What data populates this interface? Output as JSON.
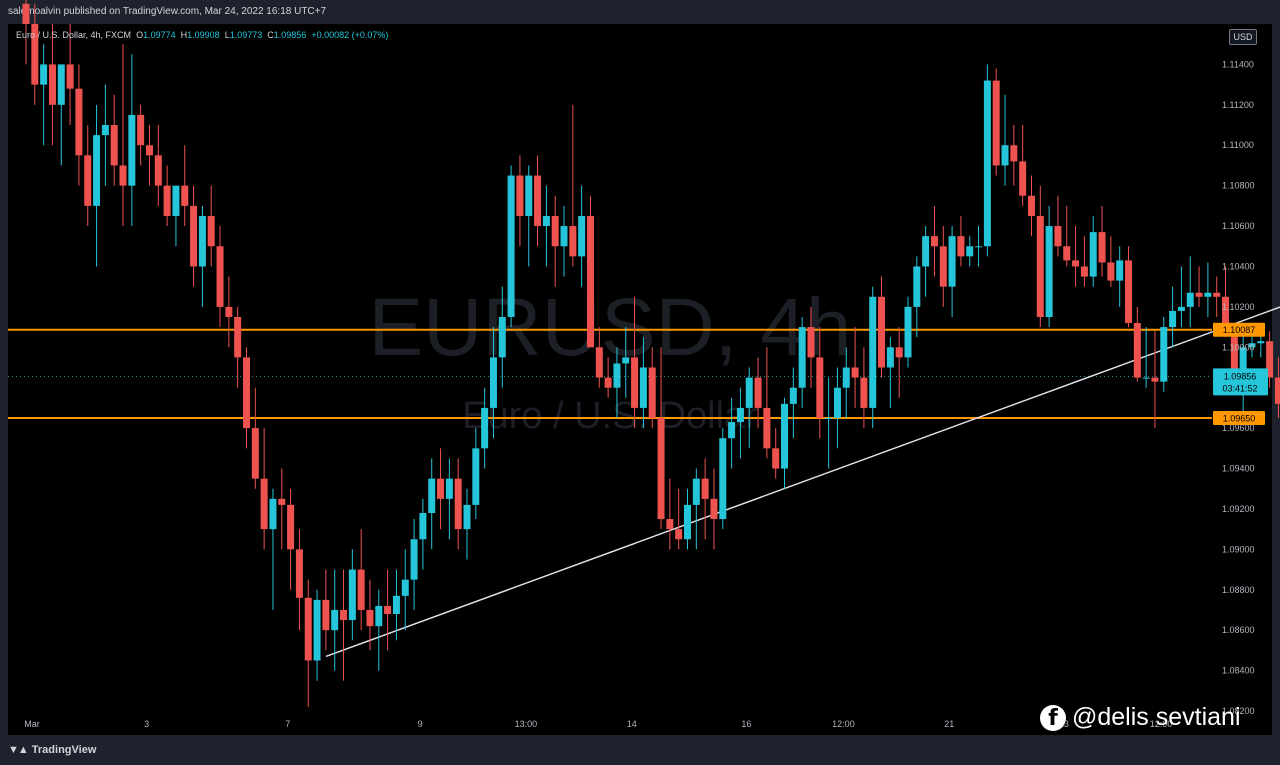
{
  "header": {
    "publish_line": "salomoalvin published on TradingView.com, Mar 24, 2022 16:18 UTC+7"
  },
  "legend": {
    "symbol_line": "Euro / U.S. Dollar, 4h, FXCM",
    "open_label": "O",
    "open": "1.09774",
    "high_label": "H",
    "high": "1.09908",
    "low_label": "L",
    "low": "1.09773",
    "close_label": "C",
    "close": "1.09856",
    "change": "+0.00082 (+0.07%)"
  },
  "watermark": {
    "symbol": "EURUSD, 4h",
    "name": "Euro / U.S. Dollar"
  },
  "currency_badge": "USD",
  "footer": {
    "brand": "TradingView",
    "brand_icon": "tradingview-logo-icon"
  },
  "credit": {
    "icon": "facebook-icon",
    "text": "@delis sevtiani"
  },
  "colors": {
    "bull": "#26c6da",
    "bear": "#ef5350",
    "level_line": "#ff9800",
    "trendline": "#e0e3eb",
    "price_line": "#26a69a",
    "background": "#000000"
  },
  "chart_data": {
    "type": "candlestick",
    "symbol": "EURUSD",
    "timeframe": "4h",
    "y_range": [
      1.082,
      1.116
    ],
    "y_ticks": [
      "1.11400",
      "1.11200",
      "1.11000",
      "1.10800",
      "1.10600",
      "1.10400",
      "1.10200",
      "1.10000",
      "1.09800",
      "1.09600",
      "1.09400",
      "1.09200",
      "1.09000",
      "1.08800",
      "1.08600",
      "1.08400",
      "1.08200"
    ],
    "x_ticks": [
      {
        "label": "Mar",
        "index": 0
      },
      {
        "label": "3",
        "index": 13
      },
      {
        "label": "7",
        "index": 29
      },
      {
        "label": "9",
        "index": 44
      },
      {
        "label": "13:00",
        "index": 56
      },
      {
        "label": "14",
        "index": 68
      },
      {
        "label": "16",
        "index": 81
      },
      {
        "label": "12:00",
        "index": 92
      },
      {
        "label": "21",
        "index": 104
      },
      {
        "label": "23",
        "index": 117
      },
      {
        "label": "12:00",
        "index": 128
      }
    ],
    "horizontal_levels": [
      {
        "price": 1.10087,
        "label": "1.10087"
      },
      {
        "price": 1.0965,
        "label": "1.09650"
      }
    ],
    "trendline": {
      "from": [
        34,
        1.0847
      ],
      "to": [
        151,
        1.1034
      ]
    },
    "last_price": {
      "price": 1.09856,
      "label": "1.09856",
      "countdown": "03:41:52"
    },
    "candles": [
      [
        1.117,
        1.118,
        1.114,
        1.116
      ],
      [
        1.116,
        1.117,
        1.112,
        1.113
      ],
      [
        1.113,
        1.115,
        1.11,
        1.114
      ],
      [
        1.114,
        1.116,
        1.11,
        1.112
      ],
      [
        1.112,
        1.114,
        1.109,
        1.114
      ],
      [
        1.114,
        1.116,
        1.111,
        1.1128
      ],
      [
        1.1128,
        1.114,
        1.108,
        1.1095
      ],
      [
        1.1095,
        1.111,
        1.106,
        1.107
      ],
      [
        1.107,
        1.112,
        1.104,
        1.1105
      ],
      [
        1.1105,
        1.113,
        1.108,
        1.111
      ],
      [
        1.111,
        1.1125,
        1.108,
        1.109
      ],
      [
        1.109,
        1.115,
        1.106,
        1.108
      ],
      [
        1.108,
        1.1145,
        1.106,
        1.1115
      ],
      [
        1.1115,
        1.112,
        1.109,
        1.11
      ],
      [
        1.11,
        1.111,
        1.108,
        1.1095
      ],
      [
        1.1095,
        1.111,
        1.107,
        1.108
      ],
      [
        1.108,
        1.109,
        1.106,
        1.1065
      ],
      [
        1.1065,
        1.108,
        1.105,
        1.108
      ],
      [
        1.108,
        1.11,
        1.106,
        1.107
      ],
      [
        1.107,
        1.108,
        1.103,
        1.104
      ],
      [
        1.104,
        1.107,
        1.102,
        1.1065
      ],
      [
        1.1065,
        1.108,
        1.104,
        1.105
      ],
      [
        1.105,
        1.106,
        1.101,
        1.102
      ],
      [
        1.102,
        1.1035,
        1.1,
        1.1015
      ],
      [
        1.1015,
        1.102,
        1.098,
        1.0995
      ],
      [
        1.0995,
        1.1,
        1.095,
        1.096
      ],
      [
        1.096,
        1.098,
        1.093,
        1.0935
      ],
      [
        1.0935,
        1.096,
        1.09,
        1.091
      ],
      [
        1.091,
        1.093,
        1.087,
        1.0925
      ],
      [
        1.0925,
        1.094,
        1.09,
        1.0922
      ],
      [
        1.0922,
        1.093,
        1.088,
        1.09
      ],
      [
        1.09,
        1.091,
        1.086,
        1.0876
      ],
      [
        1.0876,
        1.0885,
        1.0822,
        1.0845
      ],
      [
        1.0845,
        1.088,
        1.0835,
        1.0875
      ],
      [
        1.0875,
        1.089,
        1.085,
        1.086
      ],
      [
        1.086,
        1.089,
        1.084,
        1.087
      ],
      [
        1.087,
        1.089,
        1.0835,
        1.0865
      ],
      [
        1.0865,
        1.09,
        1.0855,
        1.089
      ],
      [
        1.089,
        1.091,
        1.086,
        1.087
      ],
      [
        1.087,
        1.0885,
        1.085,
        1.0862
      ],
      [
        1.0862,
        1.088,
        1.084,
        1.0872
      ],
      [
        1.0872,
        1.089,
        1.085,
        1.0868
      ],
      [
        1.0868,
        1.089,
        1.0855,
        1.0877
      ],
      [
        1.0877,
        1.09,
        1.086,
        1.0885
      ],
      [
        1.0885,
        1.0915,
        1.087,
        1.0905
      ],
      [
        1.0905,
        1.0925,
        1.089,
        1.0918
      ],
      [
        1.0918,
        1.0945,
        1.09,
        1.0935
      ],
      [
        1.0935,
        1.095,
        1.091,
        1.0925
      ],
      [
        1.0925,
        1.0945,
        1.0905,
        1.0935
      ],
      [
        1.0935,
        1.0945,
        1.09,
        1.091
      ],
      [
        1.091,
        1.093,
        1.0895,
        1.0922
      ],
      [
        1.0922,
        1.096,
        1.0915,
        1.095
      ],
      [
        1.095,
        1.098,
        1.094,
        1.097
      ],
      [
        1.097,
        1.101,
        1.0955,
        1.0995
      ],
      [
        1.0995,
        1.103,
        1.098,
        1.1015
      ],
      [
        1.1015,
        1.109,
        1.101,
        1.1085
      ],
      [
        1.1085,
        1.1095,
        1.105,
        1.1065
      ],
      [
        1.1065,
        1.109,
        1.104,
        1.1085
      ],
      [
        1.1085,
        1.1095,
        1.105,
        1.106
      ],
      [
        1.106,
        1.108,
        1.104,
        1.1065
      ],
      [
        1.1065,
        1.1075,
        1.103,
        1.105
      ],
      [
        1.105,
        1.107,
        1.1035,
        1.106
      ],
      [
        1.106,
        1.112,
        1.104,
        1.1045
      ],
      [
        1.1045,
        1.108,
        1.103,
        1.1065
      ],
      [
        1.1065,
        1.1075,
        1.1,
        1.1
      ],
      [
        1.1,
        1.101,
        1.098,
        1.0985
      ],
      [
        1.0985,
        1.0995,
        1.0975,
        1.098
      ],
      [
        1.098,
        1.1,
        1.0965,
        1.0992
      ],
      [
        1.0992,
        1.101,
        1.0975,
        1.0995
      ],
      [
        1.0995,
        1.1025,
        1.096,
        1.097
      ],
      [
        1.097,
        1.1005,
        1.096,
        1.099
      ],
      [
        1.099,
        1.1,
        1.096,
        1.0965
      ],
      [
        1.0965,
        1.1,
        1.091,
        1.0915
      ],
      [
        1.0915,
        1.0935,
        1.09,
        1.091
      ],
      [
        1.091,
        1.093,
        1.09,
        1.0905
      ],
      [
        1.0905,
        1.093,
        1.09,
        1.0922
      ],
      [
        1.0922,
        1.094,
        1.09,
        1.0935
      ],
      [
        1.0935,
        1.0945,
        1.0905,
        1.0925
      ],
      [
        1.0925,
        1.094,
        1.09,
        1.0915
      ],
      [
        1.0915,
        1.096,
        1.091,
        1.0955
      ],
      [
        1.0955,
        1.0975,
        1.094,
        1.0963
      ],
      [
        1.0963,
        1.098,
        1.0945,
        1.097
      ],
      [
        1.097,
        1.099,
        1.095,
        1.0985
      ],
      [
        1.0985,
        1.0995,
        1.096,
        1.097
      ],
      [
        1.097,
        1.1,
        1.0945,
        1.095
      ],
      [
        1.095,
        1.096,
        1.0935,
        1.094
      ],
      [
        1.094,
        1.0975,
        1.093,
        1.0972
      ],
      [
        1.0972,
        1.099,
        1.0955,
        1.098
      ],
      [
        1.098,
        1.1015,
        1.097,
        1.101
      ],
      [
        1.101,
        1.102,
        1.098,
        1.0995
      ],
      [
        1.0995,
        1.101,
        1.0955,
        1.0965
      ],
      [
        1.0965,
        1.0985,
        1.094,
        1.0965
      ],
      [
        1.0965,
        1.099,
        1.095,
        1.098
      ],
      [
        1.098,
        1.1,
        1.0965,
        1.099
      ],
      [
        1.099,
        1.101,
        1.097,
        1.0985
      ],
      [
        1.0985,
        1.1,
        1.096,
        1.097
      ],
      [
        1.097,
        1.103,
        1.096,
        1.1025
      ],
      [
        1.1025,
        1.1035,
        1.0985,
        1.099
      ],
      [
        1.099,
        1.1005,
        1.097,
        1.1
      ],
      [
        1.1,
        1.101,
        1.0975,
        1.0995
      ],
      [
        1.0995,
        1.1025,
        1.099,
        1.102
      ],
      [
        1.102,
        1.1045,
        1.1005,
        1.104
      ],
      [
        1.104,
        1.106,
        1.1025,
        1.1055
      ],
      [
        1.1055,
        1.107,
        1.1035,
        1.105
      ],
      [
        1.105,
        1.106,
        1.102,
        1.103
      ],
      [
        1.103,
        1.106,
        1.1015,
        1.1055
      ],
      [
        1.1055,
        1.1065,
        1.104,
        1.1045
      ],
      [
        1.1045,
        1.1055,
        1.104,
        1.105
      ],
      [
        1.105,
        1.106,
        1.104,
        1.105
      ],
      [
        1.105,
        1.114,
        1.1045,
        1.1132
      ],
      [
        1.1132,
        1.1138,
        1.1085,
        1.109
      ],
      [
        1.109,
        1.1125,
        1.108,
        1.11
      ],
      [
        1.11,
        1.111,
        1.108,
        1.1092
      ],
      [
        1.1092,
        1.111,
        1.107,
        1.1075
      ],
      [
        1.1075,
        1.1085,
        1.1055,
        1.1065
      ],
      [
        1.1065,
        1.108,
        1.101,
        1.1015
      ],
      [
        1.1015,
        1.107,
        1.101,
        1.106
      ],
      [
        1.106,
        1.1075,
        1.1045,
        1.105
      ],
      [
        1.105,
        1.107,
        1.104,
        1.1043
      ],
      [
        1.1043,
        1.106,
        1.103,
        1.104
      ],
      [
        1.104,
        1.1055,
        1.103,
        1.1035
      ],
      [
        1.1035,
        1.1065,
        1.103,
        1.1057
      ],
      [
        1.1057,
        1.107,
        1.1035,
        1.1042
      ],
      [
        1.1042,
        1.1055,
        1.103,
        1.1033
      ],
      [
        1.1033,
        1.105,
        1.102,
        1.1043
      ],
      [
        1.1043,
        1.105,
        1.101,
        1.1012
      ],
      [
        1.1012,
        1.102,
        1.0983,
        1.0985
      ],
      [
        1.0985,
        1.101,
        1.098,
        1.0985
      ],
      [
        1.0985,
        1.1008,
        1.096,
        1.0983
      ],
      [
        1.0983,
        1.1015,
        1.0978,
        1.101
      ],
      [
        1.101,
        1.103,
        1.1,
        1.1018
      ],
      [
        1.1018,
        1.104,
        1.101,
        1.102
      ],
      [
        1.102,
        1.1045,
        1.101,
        1.1027
      ],
      [
        1.1027,
        1.104,
        1.102,
        1.1025
      ],
      [
        1.1025,
        1.1042,
        1.1015,
        1.1027
      ],
      [
        1.1027,
        1.1035,
        1.1015,
        1.1025
      ],
      [
        1.1025,
        1.104,
        1.1005,
        1.1008
      ],
      [
        1.1008,
        1.1012,
        1.098,
        1.0985
      ],
      [
        1.0985,
        1.1012,
        1.0963,
        1.1
      ],
      [
        1.1,
        1.1012,
        1.0995,
        1.1002
      ],
      [
        1.1002,
        1.101,
        1.0995,
        1.1003
      ],
      [
        1.1003,
        1.1008,
        1.098,
        1.0985
      ],
      [
        1.0985,
        1.0995,
        1.0965,
        1.0972
      ],
      [
        1.0977,
        1.0991,
        1.0977,
        1.0986
      ]
    ]
  }
}
